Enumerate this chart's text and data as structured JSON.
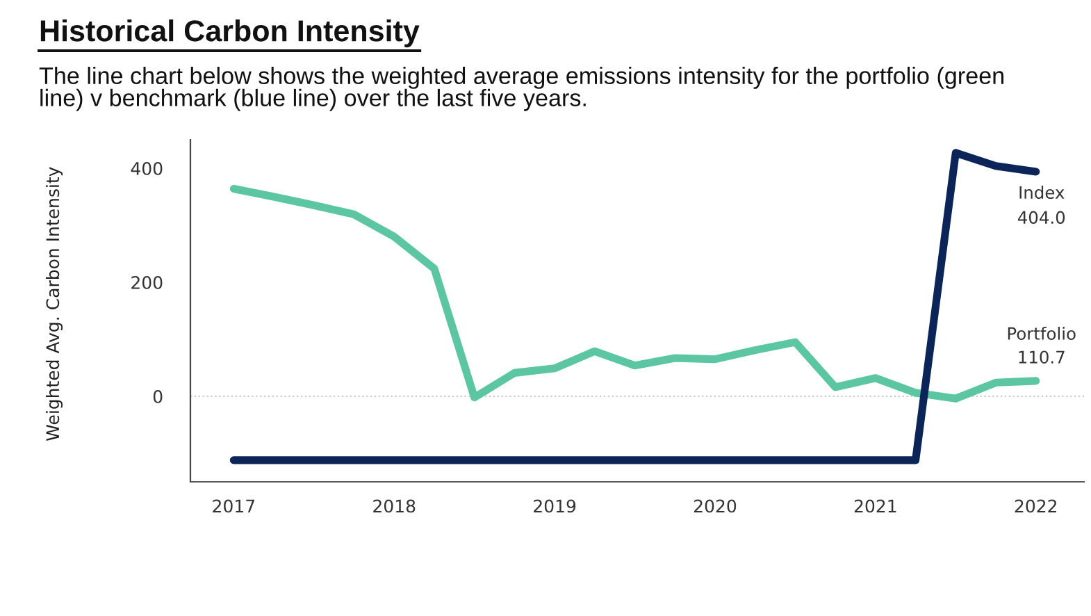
{
  "chart_data": {
    "type": "line",
    "title": "Historical Carbon Intensity",
    "subtitle": "The line chart below shows the weighted average emissions intensity for the portfolio (green\nline) v benchmark (blue line) over the last five years.",
    "ylabel": "Weighted Avg. Carbon Intensity",
    "x": [
      2017,
      2017.25,
      2017.5,
      2017.75,
      2018,
      2018.25,
      2018.5,
      2018.75,
      2019,
      2019.25,
      2019.5,
      2019.75,
      2020,
      2020.25,
      2020.5,
      2020.75,
      2021,
      2021.25,
      2021.5,
      2021.75,
      2022
    ],
    "xlim": [
      2016.73,
      2022.3
    ],
    "xticks": [
      2017,
      2018,
      2019,
      2020,
      2021,
      2022
    ],
    "ylim": [
      -150,
      450
    ],
    "yticks": [
      0,
      200,
      400
    ],
    "series": [
      {
        "name": "Index",
        "color": "#0b2559",
        "values": [
          -112,
          -112,
          -112,
          -112,
          -112,
          -112,
          -112,
          -112,
          -112,
          -112,
          -112,
          -112,
          -112,
          -112,
          -112,
          -112,
          -112,
          -112,
          427,
          404,
          394
        ]
      },
      {
        "name": "Portfolio",
        "color": "#5cc5a1",
        "values": [
          364,
          350,
          335,
          319,
          280,
          224,
          -2,
          41,
          49,
          79,
          54,
          67,
          65,
          81,
          95,
          16,
          32,
          6,
          -4,
          24,
          27
        ]
      }
    ],
    "annotations": [
      "404.0",
      "110.7"
    ],
    "ref_lines": [
      {
        "axis": "y",
        "value": 0,
        "color": "#c8c8c8",
        "line_style": "dotted"
      }
    ],
    "grid": false,
    "marker": "none",
    "line_style": "solid"
  }
}
